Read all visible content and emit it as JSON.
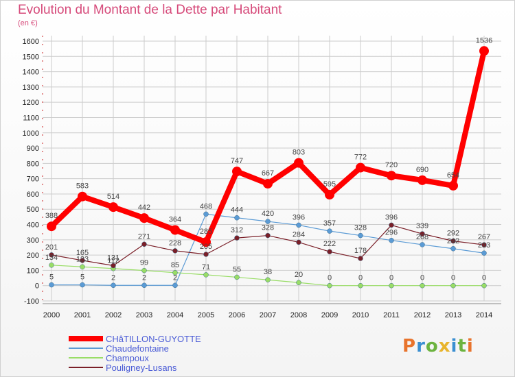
{
  "header": {
    "title": "Evolution du Montant de la Dette par Habitant",
    "subtitle": "(en €)"
  },
  "logo": {
    "text": "Proxiti",
    "colors": [
      "#e8732c",
      "#3a8fd1",
      "#6cb33f",
      "#e8b42c",
      "#3a8fd1",
      "#6cb33f",
      "#e8732c"
    ]
  },
  "chart_data": {
    "type": "line",
    "title": "Evolution du Montant de la Dette par Habitant",
    "subtitle": "(en €)",
    "x": [
      2000,
      2001,
      2002,
      2003,
      2004,
      2005,
      2006,
      2007,
      2008,
      2009,
      2010,
      2011,
      2012,
      2013,
      2014
    ],
    "ylim": [
      -100,
      1600
    ],
    "yticks": [
      -100,
      0,
      100,
      200,
      300,
      400,
      500,
      600,
      700,
      800,
      900,
      1000,
      1100,
      1200,
      1300,
      1400,
      1500,
      1600
    ],
    "grid": true,
    "legend_position": "bottom-left",
    "series": [
      {
        "name": "CHâTILLON-GUYOTTE",
        "color": "#ff0000",
        "width": 8,
        "marker": 7,
        "values": [
          388,
          583,
          514,
          442,
          364,
          285,
          747,
          667,
          803,
          595,
          772,
          720,
          690,
          654,
          1536
        ]
      },
      {
        "name": "Chaudefontaine",
        "color": "#5b9bd5",
        "width": 1.2,
        "marker": 3.5,
        "values": [
          5,
          5,
          2,
          2,
          2,
          468,
          444,
          420,
          396,
          357,
          328,
          296,
          268,
          242,
          213
        ]
      },
      {
        "name": "Champoux",
        "color": "#99dd66",
        "width": 1.2,
        "marker": 3.5,
        "values": [
          134,
          123,
          112,
          99,
          85,
          71,
          55,
          38,
          20,
          0,
          0,
          0,
          0,
          0,
          0
        ]
      },
      {
        "name": "Pouligney-Lusans",
        "color": "#7a1f28",
        "width": 1.2,
        "marker": 3.5,
        "values": [
          201,
          165,
          131,
          271,
          228,
          205,
          312,
          328,
          284,
          222,
          178,
          396,
          339,
          292,
          267
        ]
      }
    ]
  }
}
